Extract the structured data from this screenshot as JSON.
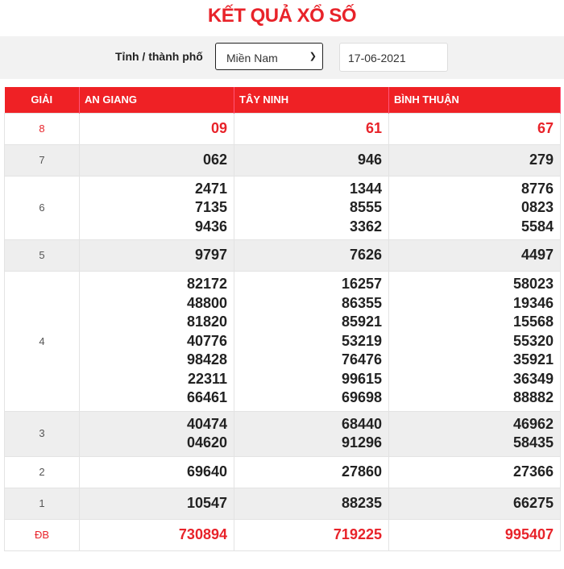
{
  "title": "KẾT QUẢ XỔ SỐ",
  "filter": {
    "label": "Tỉnh / thành phố",
    "region_selected": "Miền Nam",
    "date_value": "17-06-2021"
  },
  "table": {
    "headers": [
      "GIẢI",
      "AN GIANG",
      "TÂY NINH",
      "BÌNH THUẬN"
    ],
    "accent_color": "#ef2125",
    "rows": [
      {
        "prize": "8",
        "highlight": true,
        "values": [
          [
            "09"
          ],
          [
            "61"
          ],
          [
            "67"
          ]
        ]
      },
      {
        "prize": "7",
        "values": [
          [
            "062"
          ],
          [
            "946"
          ],
          [
            "279"
          ]
        ]
      },
      {
        "prize": "6",
        "values": [
          [
            "2471",
            "7135",
            "9436"
          ],
          [
            "1344",
            "8555",
            "3362"
          ],
          [
            "8776",
            "0823",
            "5584"
          ]
        ]
      },
      {
        "prize": "5",
        "values": [
          [
            "9797"
          ],
          [
            "7626"
          ],
          [
            "4497"
          ]
        ]
      },
      {
        "prize": "4",
        "values": [
          [
            "82172",
            "48800",
            "81820",
            "40776",
            "98428",
            "22311",
            "66461"
          ],
          [
            "16257",
            "86355",
            "85921",
            "53219",
            "76476",
            "99615",
            "69698"
          ],
          [
            "58023",
            "19346",
            "15568",
            "55320",
            "35921",
            "36349",
            "88882"
          ]
        ]
      },
      {
        "prize": "3",
        "values": [
          [
            "40474",
            "04620"
          ],
          [
            "68440",
            "91296"
          ],
          [
            "46962",
            "58435"
          ]
        ]
      },
      {
        "prize": "2",
        "values": [
          [
            "69640"
          ],
          [
            "27860"
          ],
          [
            "27366"
          ]
        ]
      },
      {
        "prize": "1",
        "values": [
          [
            "10547"
          ],
          [
            "88235"
          ],
          [
            "66275"
          ]
        ]
      },
      {
        "prize": "ĐB",
        "highlight": true,
        "values": [
          [
            "730894"
          ],
          [
            "719225"
          ],
          [
            "995407"
          ]
        ]
      }
    ]
  }
}
